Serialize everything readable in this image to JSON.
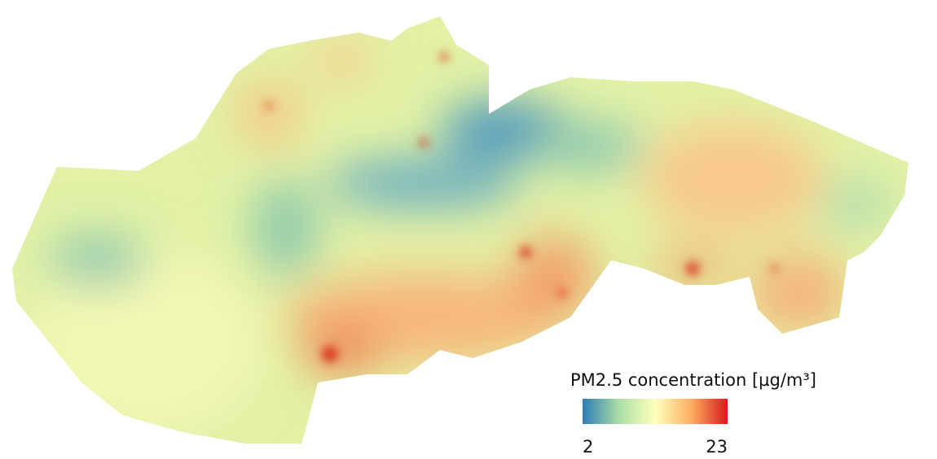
{
  "legend": {
    "title": "PM2.5 concentration [µg/m³]",
    "min": 2,
    "max": 23,
    "colors": [
      "#2c7bb6",
      "#abdda4",
      "#ffffbf",
      "#fdae61",
      "#d7191c"
    ]
  }
}
